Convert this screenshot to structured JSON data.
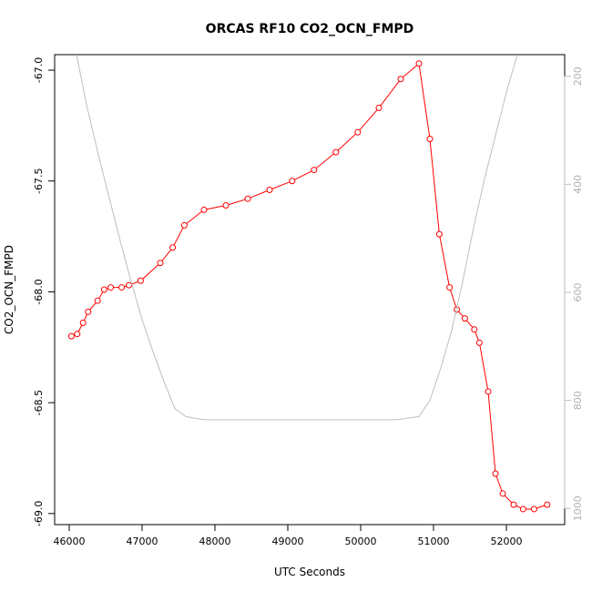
{
  "chart_data": {
    "type": "line",
    "title": "ORCAS RF10 CO2_OCN_FMPD",
    "xlabel": "UTC Seconds",
    "ylabel": "CO2_OCN_FMPD",
    "xlim": [
      45800,
      52800
    ],
    "ylim": [
      -69.05,
      -66.93
    ],
    "x_ticks": [
      46000,
      47000,
      48000,
      49000,
      50000,
      51000,
      52000
    ],
    "y_ticks": [
      -67.0,
      -67.5,
      -68.0,
      -68.5,
      -69.0
    ],
    "y_tick_labels": [
      "-67.0",
      "-67.5",
      "-68.0",
      "-68.5",
      "-69.0"
    ],
    "secondary_axis": {
      "label": "",
      "ylim": [
        1030,
        160
      ],
      "ticks": [
        200,
        400,
        600,
        800,
        1000
      ],
      "tick_labels": [
        "200",
        "400",
        "600",
        "800",
        "1000"
      ],
      "color": "#bebebe"
    },
    "series": [
      {
        "color": "#ff0000",
        "marker": "open-circle",
        "x": [
          46030,
          46110,
          46190,
          46260,
          46390,
          46480,
          46570,
          46720,
          46820,
          46980,
          47250,
          47420,
          47580,
          47850,
          48150,
          48450,
          48750,
          49060,
          49360,
          49660,
          49960,
          50250,
          50550,
          50800,
          50950,
          51080,
          51220,
          51320,
          51430,
          51560,
          51630,
          51750,
          51850,
          51950,
          52100,
          52230,
          52380,
          52560
        ],
        "y": [
          -68.2,
          -68.19,
          -68.14,
          -68.09,
          -68.04,
          -67.99,
          -67.98,
          -67.98,
          -67.97,
          -67.95,
          -67.87,
          -67.8,
          -67.7,
          -67.63,
          -67.61,
          -67.58,
          -67.54,
          -67.5,
          -67.45,
          -67.37,
          -67.28,
          -67.17,
          -67.04,
          -66.97,
          -67.31,
          -67.74,
          -67.98,
          -68.08,
          -68.12,
          -68.17,
          -68.23,
          -68.45,
          -68.82,
          -68.91,
          -68.96,
          -68.98,
          -68.98,
          -68.96
        ]
      },
      {
        "color": "#bebebe",
        "marker": "none",
        "axis": "secondary",
        "x": [
          46100,
          46250,
          46400,
          46550,
          46700,
          46850,
          47000,
          47150,
          47300,
          47450,
          47600,
          47850,
          48500,
          49500,
          50000,
          50500,
          50800,
          50950,
          51100,
          51250,
          51400,
          51550,
          51700,
          51850,
          52000,
          52150
        ],
        "y": [
          160,
          260,
          345,
          425,
          505,
          580,
          650,
          710,
          765,
          815,
          830,
          836,
          836,
          836,
          836,
          836,
          830,
          800,
          740,
          670,
          580,
          480,
          390,
          310,
          230,
          160
        ]
      }
    ]
  }
}
